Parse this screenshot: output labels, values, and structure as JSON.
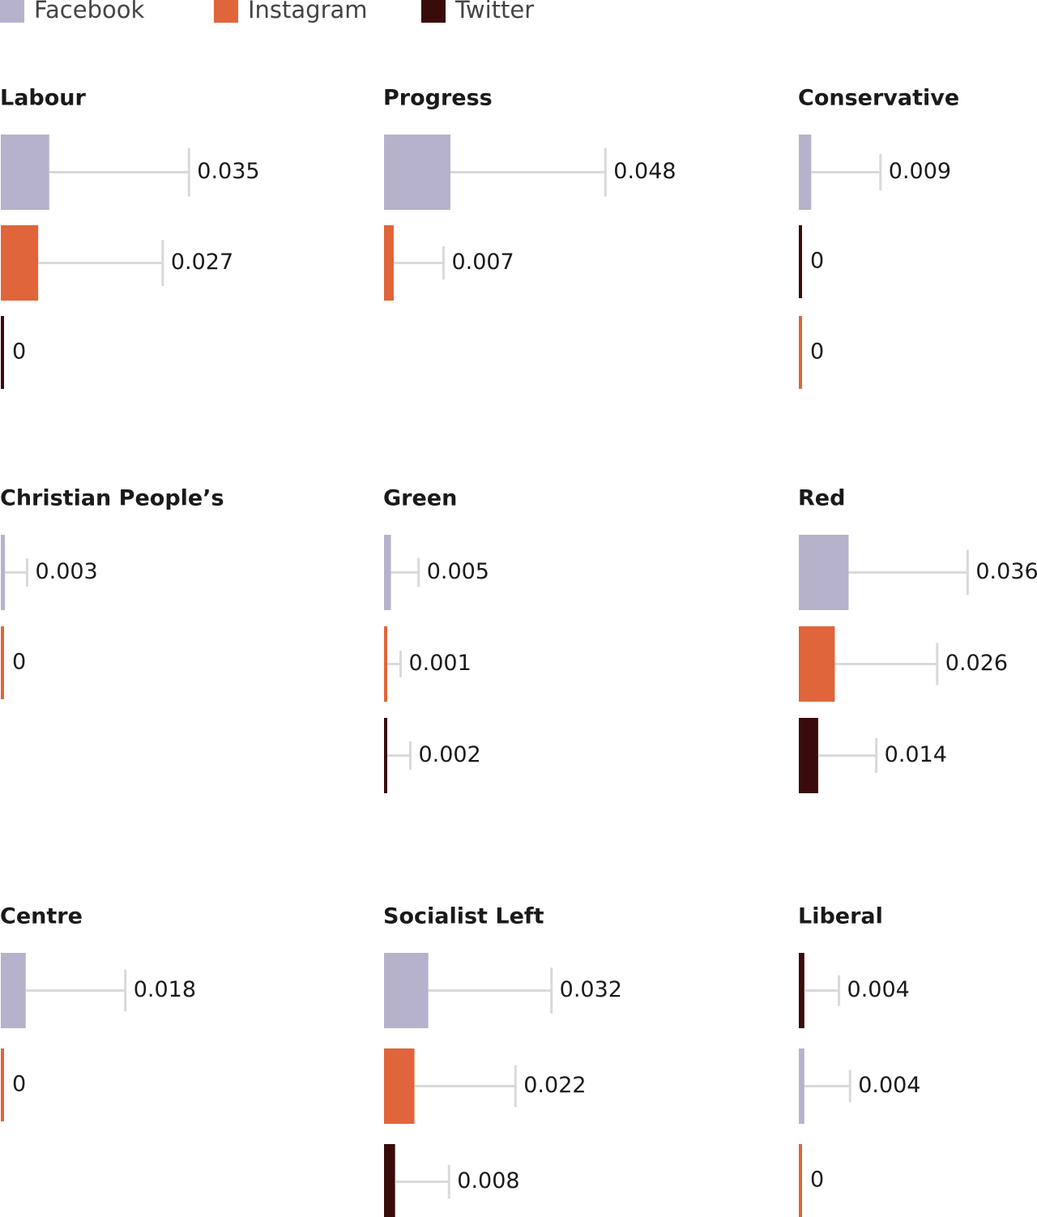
{
  "legend": {
    "series": [
      {
        "name": "Facebook",
        "color": "#b7b2cb"
      },
      {
        "name": "Instagram",
        "color": "#e0653a"
      },
      {
        "name": "Twitter",
        "color": "#3a0b0b"
      }
    ]
  },
  "chart_data": [
    {
      "type": "bar",
      "title": "Labour",
      "categories": [
        "Facebook",
        "Instagram",
        "Twitter"
      ],
      "values": [
        0.035,
        0.027,
        0
      ],
      "errors": [
        0.101,
        0.09,
        null
      ]
    },
    {
      "type": "bar",
      "title": "Progress",
      "categories": [
        "Facebook",
        "Instagram"
      ],
      "values": [
        0.048,
        0.007
      ],
      "errors": [
        0.112,
        0.036
      ]
    },
    {
      "type": "bar",
      "title": "Conservative",
      "categories": [
        "Facebook",
        "Twitter",
        "Instagram"
      ],
      "values": [
        0.009,
        0,
        0
      ],
      "errors": [
        0.05,
        null,
        null
      ]
    },
    {
      "type": "bar",
      "title": "Christian People’s",
      "categories": [
        "Facebook",
        "Instagram"
      ],
      "values": [
        0.003,
        0
      ],
      "errors": [
        0.016,
        null
      ]
    },
    {
      "type": "bar",
      "title": "Green",
      "categories": [
        "Facebook",
        "Instagram",
        "Twitter"
      ],
      "values": [
        0.005,
        0.001,
        0.002
      ],
      "errors": [
        0.02,
        0.011,
        0.017
      ]
    },
    {
      "type": "bar",
      "title": "Red",
      "categories": [
        "Facebook",
        "Instagram",
        "Twitter"
      ],
      "values": [
        0.036,
        0.026,
        0.014
      ],
      "errors": [
        0.086,
        0.074,
        0.042
      ]
    },
    {
      "type": "bar",
      "title": "Centre",
      "categories": [
        "Facebook",
        "Instagram"
      ],
      "values": [
        0.018,
        0
      ],
      "errors": [
        0.072,
        null
      ]
    },
    {
      "type": "bar",
      "title": "Socialist Left",
      "categories": [
        "Facebook",
        "Instagram",
        "Twitter"
      ],
      "values": [
        0.032,
        0.022,
        0.008
      ],
      "errors": [
        0.089,
        0.073,
        0.039
      ]
    },
    {
      "type": "bar",
      "title": "Liberal",
      "categories": [
        "Twitter",
        "Facebook",
        "Instagram"
      ],
      "values": [
        0.004,
        0.004,
        0
      ],
      "errors": [
        0.025,
        0.033,
        null
      ]
    }
  ]
}
